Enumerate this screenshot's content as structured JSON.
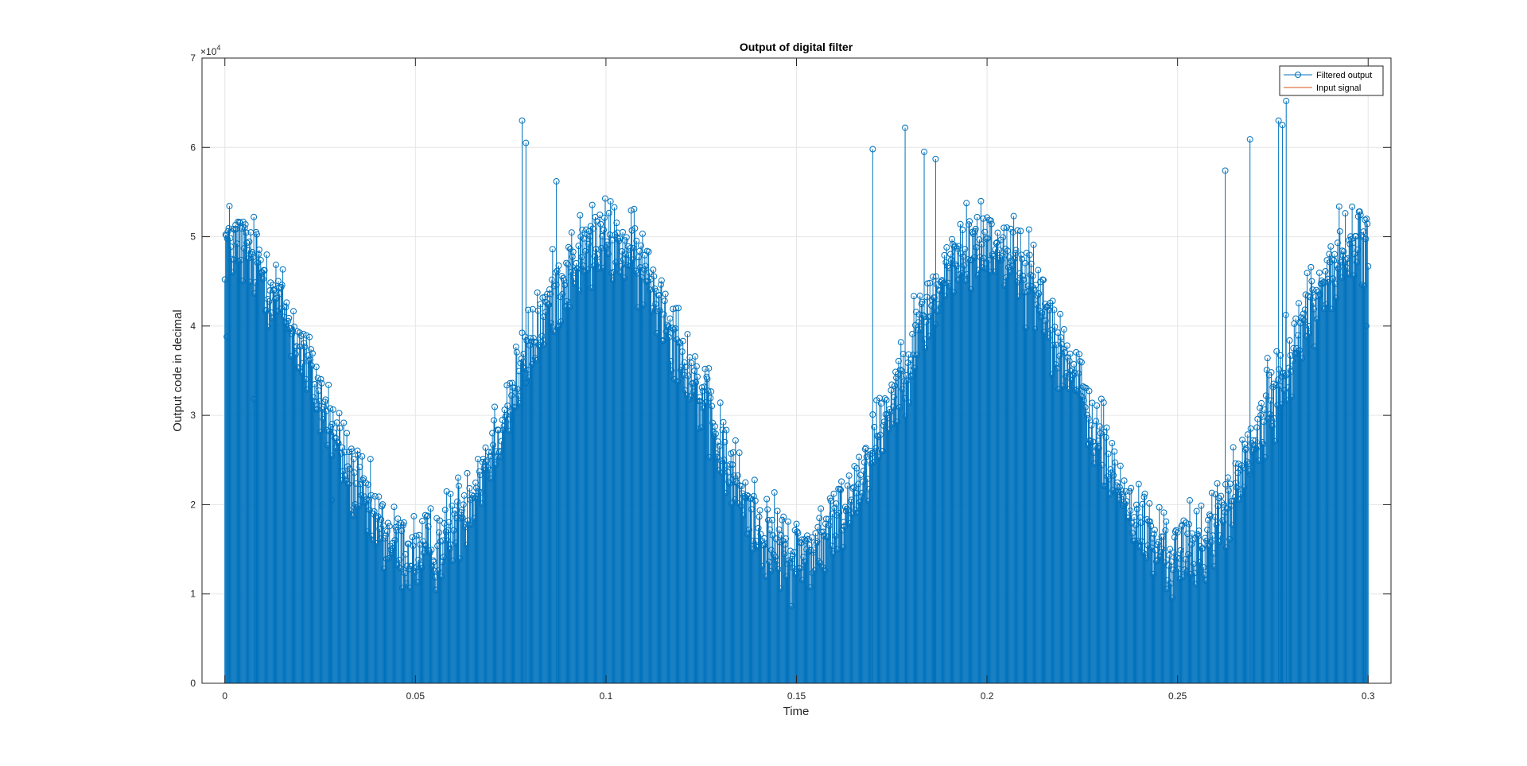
{
  "chart_data": {
    "type": "stem",
    "title": "Output of digital filter",
    "xlabel": "Time",
    "ylabel": "Output code in decimal",
    "y_exponent_base": "10",
    "y_exponent_power": "4",
    "xlim": [
      -0.006,
      0.306
    ],
    "ylim": [
      0,
      70000
    ],
    "xticks": [
      0,
      0.05,
      0.1,
      0.15,
      0.2,
      0.25,
      0.3
    ],
    "xtick_labels": [
      "0",
      "0.05",
      "0.1",
      "0.15",
      "0.2",
      "0.25",
      "0.3"
    ],
    "yticks": [
      0,
      10000,
      20000,
      30000,
      40000,
      50000,
      60000,
      70000
    ],
    "ytick_labels": [
      "0",
      "1",
      "2",
      "3",
      "4",
      "5",
      "6",
      "7"
    ],
    "grid": true,
    "box": true,
    "legend_position": "top-right",
    "series": [
      {
        "name": "Filtered output",
        "style": "stem",
        "marker": "circle",
        "color": "#0072BD",
        "sampling": {
          "t_start": 0,
          "t_end": 0.3,
          "step": 0.0002
        },
        "envelope": {
          "offset": 32000,
          "amplitude": 17500,
          "frequency_hz": 10,
          "phase_deg": 0
        },
        "noise_peak": 7000,
        "noise_min": 2000,
        "noise_max": 64000,
        "highlighted_points": [
          {
            "x": 0.0005,
            "y": 38800
          },
          {
            "x": 0.0078,
            "y": 31800
          },
          {
            "x": 0.028,
            "y": 20500
          },
          {
            "x": 0.078,
            "y": 63000
          },
          {
            "x": 0.079,
            "y": 60500
          },
          {
            "x": 0.087,
            "y": 56200
          },
          {
            "x": 0.17,
            "y": 59800
          },
          {
            "x": 0.1785,
            "y": 62200
          },
          {
            "x": 0.1835,
            "y": 59500
          },
          {
            "x": 0.1865,
            "y": 58700
          },
          {
            "x": 0.269,
            "y": 60900
          },
          {
            "x": 0.2765,
            "y": 63000
          },
          {
            "x": 0.2775,
            "y": 62500
          },
          {
            "x": 0.2785,
            "y": 65200
          },
          {
            "x": 0.2625,
            "y": 57400
          },
          {
            "x": 0.2995,
            "y": 40000
          }
        ]
      },
      {
        "name": "Input signal",
        "style": "line",
        "color": "#D95319",
        "values": []
      }
    ]
  }
}
